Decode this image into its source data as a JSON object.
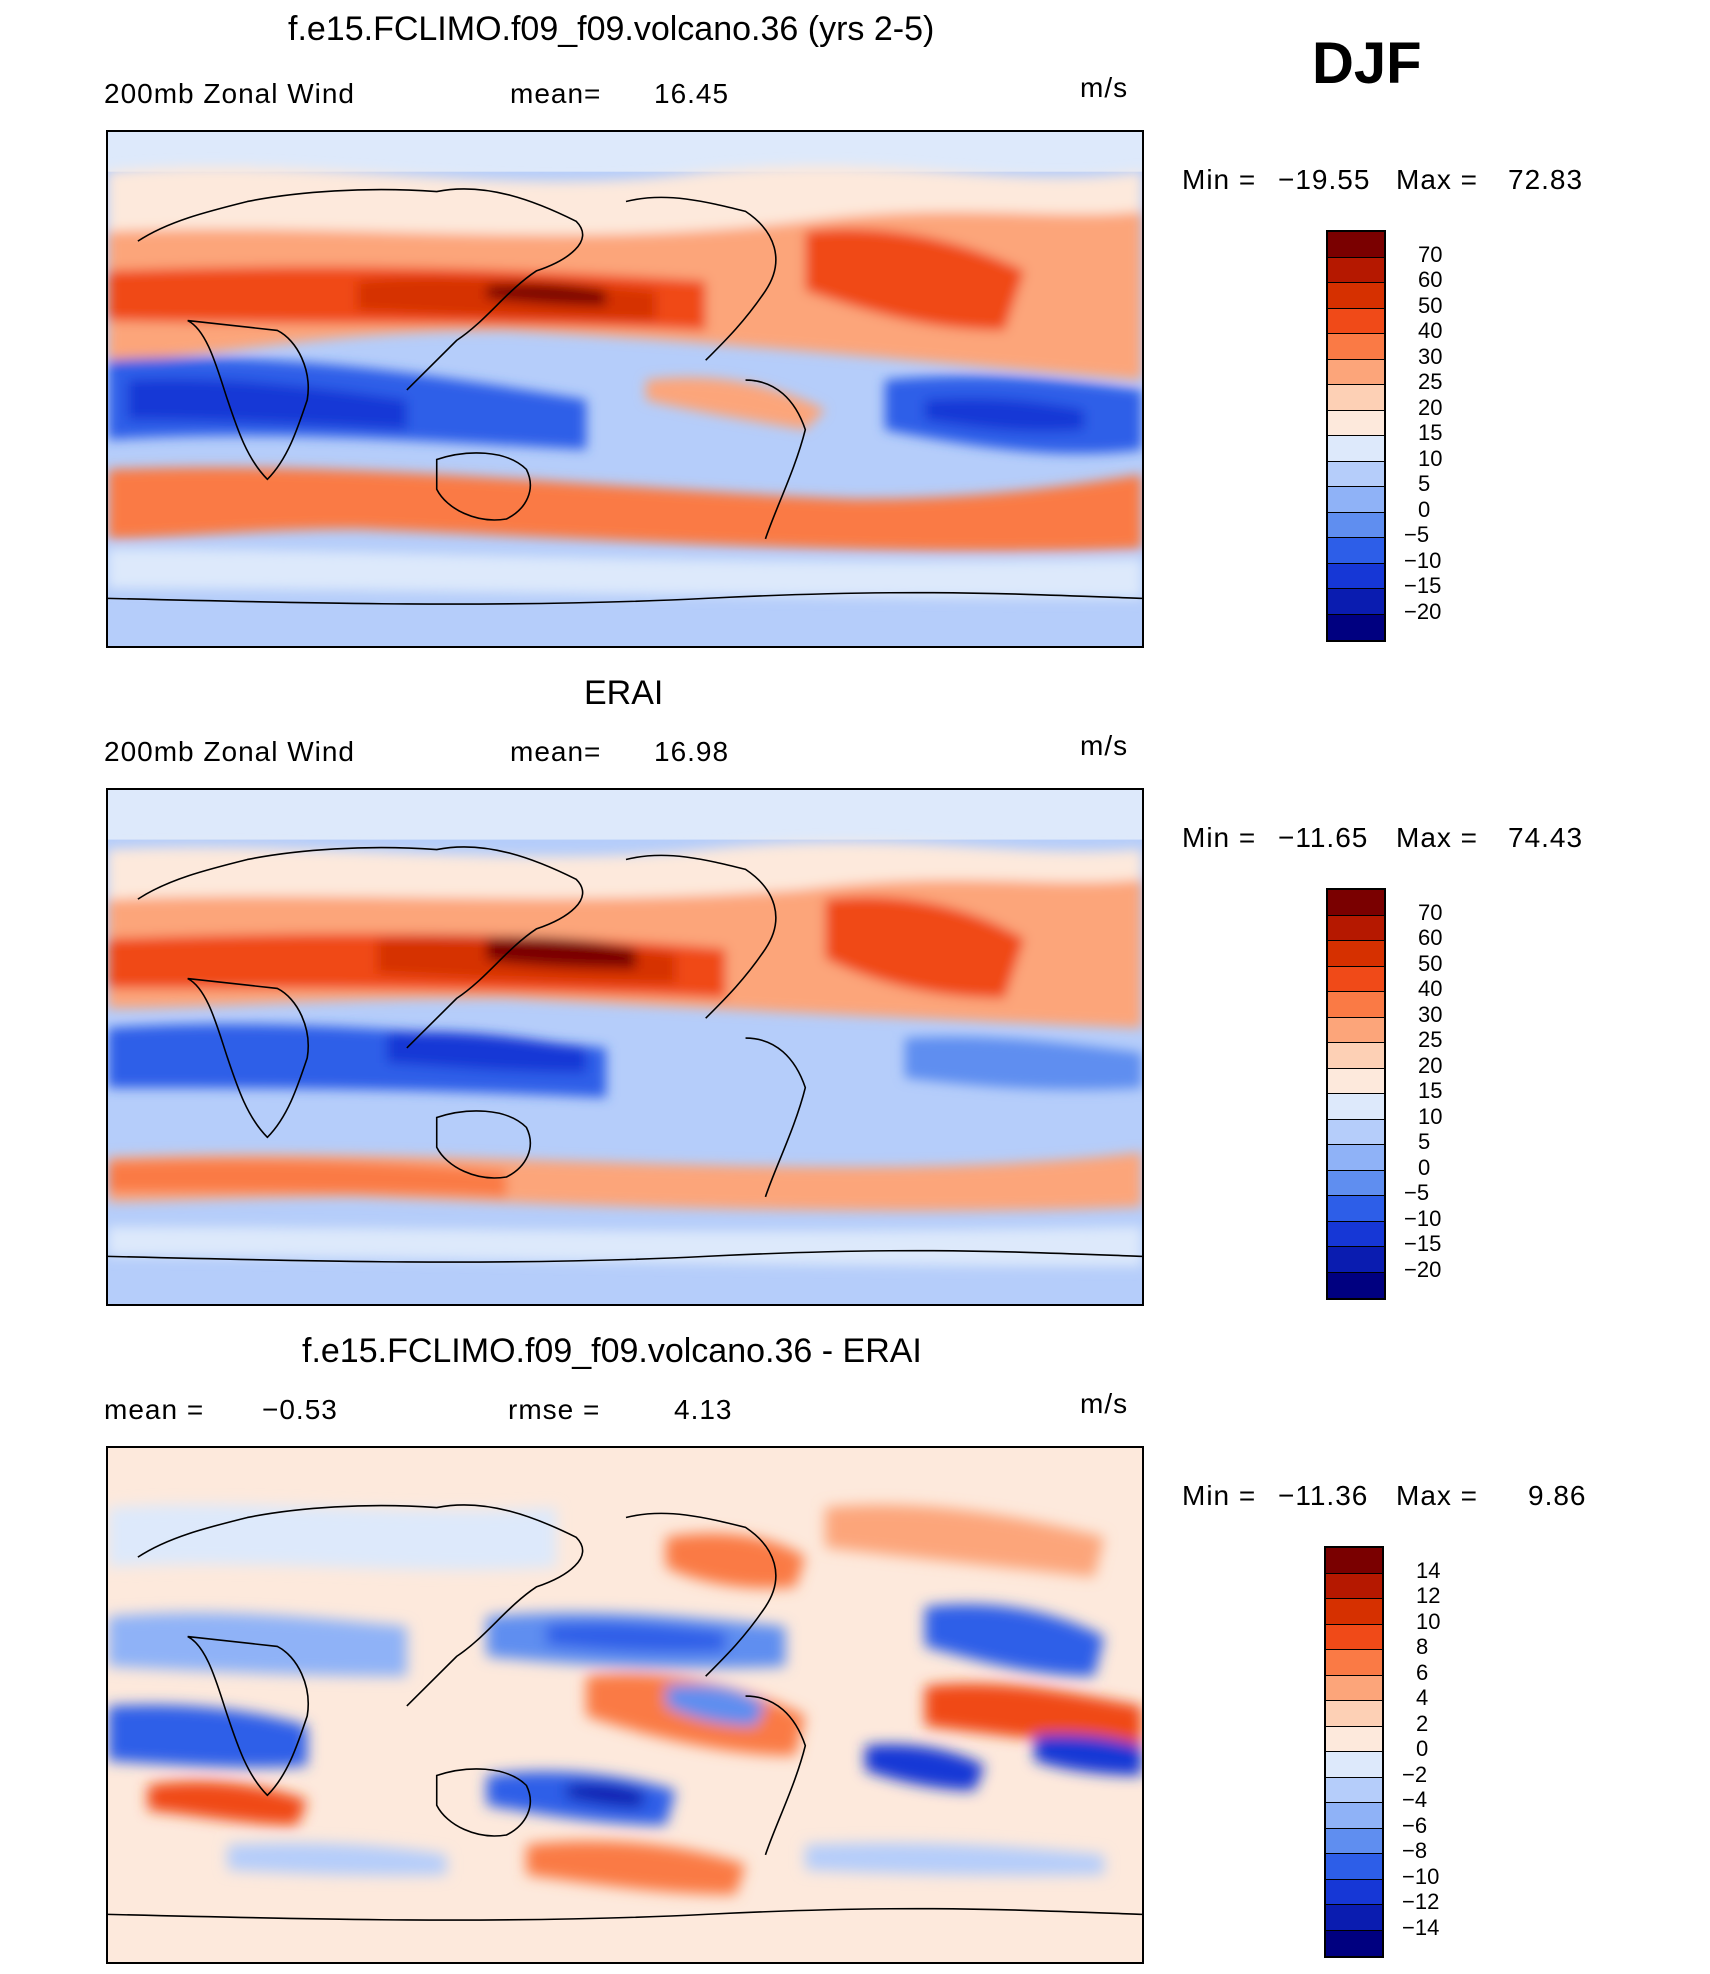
{
  "season": "DJF",
  "panels": [
    {
      "title": "f.e15.FCLIMO.f09_f09.volcano.36 (yrs 2-5)",
      "left_label": "200mb Zonal Wind",
      "stat_label": "mean=",
      "stat_value": "16.45",
      "right_stat": "",
      "units": "m/s",
      "min_label": "Min =",
      "min_value": "−19.55",
      "max_label": "Max =",
      "max_value": "72.83"
    },
    {
      "title": "ERAI",
      "left_label": "200mb Zonal Wind",
      "stat_label": "mean=",
      "stat_value": "16.98",
      "right_stat": "",
      "units": "m/s",
      "min_label": "Min =",
      "min_value": "−11.65",
      "max_label": "Max =",
      "max_value": "74.43"
    },
    {
      "title": "f.e15.FCLIMO.f09_f09.volcano.36 - ERAI",
      "left_label": "mean =",
      "stat_label": "",
      "stat_value": "−0.53",
      "right_stat": "rmse =",
      "right_value": "4.13",
      "units": "m/s",
      "min_label": "Min =",
      "min_value": "−11.36",
      "max_label": "Max =",
      "max_value": "9.86"
    }
  ],
  "colorbars": {
    "field": {
      "labels": [
        "70",
        "60",
        "50",
        "40",
        "30",
        "25",
        "20",
        "15",
        "10",
        "5",
        "0",
        "−5",
        "−10",
        "−15",
        "−20"
      ],
      "colors": [
        "#7a0000",
        "#b51800",
        "#d63000",
        "#f04a18",
        "#fa7a45",
        "#fca57a",
        "#fdd0b5",
        "#fde9dc",
        "#dde9fb",
        "#b5cdfa",
        "#8fb2f7",
        "#5f8ef0",
        "#2d5ee8",
        "#1637d6",
        "#0a1cb0",
        "#000080"
      ]
    },
    "difference": {
      "labels": [
        "14",
        "12",
        "10",
        "8",
        "6",
        "4",
        "2",
        "0",
        "−2",
        "−4",
        "−6",
        "−8",
        "−10",
        "−12",
        "−14"
      ],
      "colors": [
        "#7a0000",
        "#b51800",
        "#d63000",
        "#f04a18",
        "#fa7a45",
        "#fca57a",
        "#fdd0b5",
        "#fde9dc",
        "#dde9fb",
        "#b5cdfa",
        "#8fb2f7",
        "#5f8ef0",
        "#2d5ee8",
        "#1637d6",
        "#0a1cb0",
        "#000080"
      ]
    }
  }
}
